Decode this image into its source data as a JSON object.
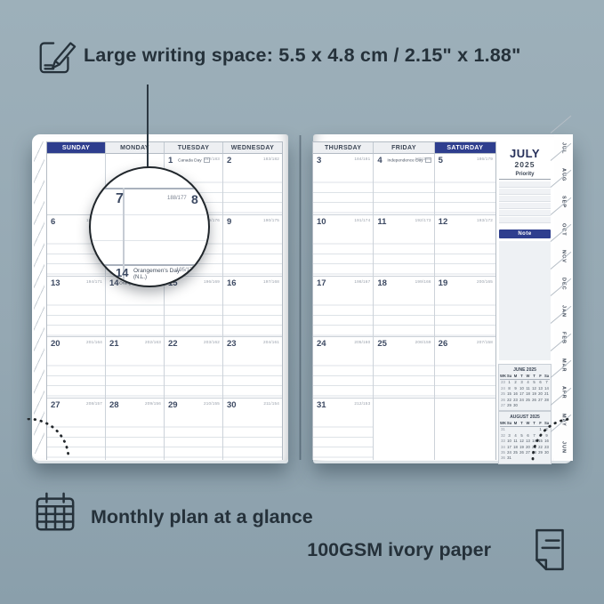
{
  "callout": {
    "text": "Large writing space: 5.5 x 4.8 cm / 2.15\" x 1.88\""
  },
  "footer": {
    "monthly_text": "Monthly plan at a glance",
    "paper_text": "100GSM ivory paper"
  },
  "colors": {
    "navy": "#2e3e8e",
    "background": "#95a8b3",
    "ink": "#25313a"
  },
  "planner": {
    "month": "JULY",
    "year": "2025",
    "priority_label": "Priority",
    "note_label": "Note",
    "left_headers": [
      "SUNDAY",
      "MONDAY",
      "TUESDAY",
      "WEDNESDAY"
    ],
    "right_headers": [
      "THURSDAY",
      "FRIDAY",
      "SATURDAY"
    ],
    "left_weeks": [
      [
        {},
        {},
        {
          "day": "1",
          "meta": "182/183",
          "holiday": "Canada Day"
        },
        {
          "day": "2",
          "meta": "183/182"
        }
      ],
      [
        {
          "day": "6",
          "meta": "187/178"
        },
        {
          "day": "7",
          "meta": "188/177"
        },
        {
          "day": "8",
          "meta": "189/176"
        },
        {
          "day": "9",
          "meta": "190/175"
        }
      ],
      [
        {
          "day": "13",
          "meta": "194/171"
        },
        {
          "day": "14",
          "meta": "195/170",
          "holiday": "Orangemen's Day (N.L.)"
        },
        {
          "day": "15",
          "meta": "196/169"
        },
        {
          "day": "16",
          "meta": "197/168"
        }
      ],
      [
        {
          "day": "20",
          "meta": "201/164"
        },
        {
          "day": "21",
          "meta": "202/163"
        },
        {
          "day": "22",
          "meta": "203/162"
        },
        {
          "day": "23",
          "meta": "204/161"
        }
      ],
      [
        {
          "day": "27",
          "meta": "208/157"
        },
        {
          "day": "28",
          "meta": "209/156"
        },
        {
          "day": "29",
          "meta": "210/155"
        },
        {
          "day": "30",
          "meta": "211/154"
        }
      ]
    ],
    "right_weeks": [
      [
        {
          "day": "3",
          "meta": "184/181"
        },
        {
          "day": "4",
          "meta": "185/180",
          "holiday": "Independence Day"
        },
        {
          "day": "5",
          "meta": "186/179"
        }
      ],
      [
        {
          "day": "10",
          "meta": "191/174"
        },
        {
          "day": "11",
          "meta": "192/173"
        },
        {
          "day": "12",
          "meta": "193/172"
        }
      ],
      [
        {
          "day": "17",
          "meta": "198/167"
        },
        {
          "day": "18",
          "meta": "199/166"
        },
        {
          "day": "19",
          "meta": "200/165"
        }
      ],
      [
        {
          "day": "24",
          "meta": "205/160"
        },
        {
          "day": "25",
          "meta": "206/159"
        },
        {
          "day": "26",
          "meta": "207/158"
        }
      ],
      [
        {
          "day": "31",
          "meta": "212/153"
        },
        {},
        {}
      ]
    ],
    "month_tabs": [
      "JUL",
      "AUG",
      "SEP",
      "OCT",
      "NOV",
      "DEC",
      "JAN",
      "FEB",
      "MAR",
      "APR",
      "MAY",
      "JUN"
    ],
    "mini_calendars": [
      {
        "title": "JUNE 2025",
        "header": [
          "WK",
          "Su",
          "M",
          "T",
          "W",
          "T",
          "F",
          "Sa"
        ],
        "rows": [
          [
            "23",
            "1",
            "2",
            "3",
            "4",
            "5",
            "6",
            "7"
          ],
          [
            "24",
            "8",
            "9",
            "10",
            "11",
            "12",
            "13",
            "14"
          ],
          [
            "25",
            "15",
            "16",
            "17",
            "18",
            "19",
            "20",
            "21"
          ],
          [
            "26",
            "22",
            "23",
            "24",
            "25",
            "26",
            "27",
            "28"
          ],
          [
            "27",
            "29",
            "30",
            "",
            "",
            "",
            "",
            ""
          ]
        ]
      },
      {
        "title": "AUGUST 2025",
        "header": [
          "WK",
          "Su",
          "M",
          "T",
          "W",
          "T",
          "F",
          "Sa"
        ],
        "rows": [
          [
            "31",
            "",
            "",
            "",
            "",
            "",
            "1",
            "2"
          ],
          [
            "32",
            "3",
            "4",
            "5",
            "6",
            "7",
            "8",
            "9"
          ],
          [
            "33",
            "10",
            "11",
            "12",
            "13",
            "14",
            "15",
            "16"
          ],
          [
            "34",
            "17",
            "18",
            "19",
            "20",
            "21",
            "22",
            "23"
          ],
          [
            "35",
            "24",
            "25",
            "26",
            "27",
            "28",
            "29",
            "30"
          ],
          [
            "36",
            "31",
            "",
            "",
            "",
            "",
            "",
            ""
          ]
        ]
      }
    ],
    "magnifier": {
      "day": "7",
      "meta": "188/177",
      "next_day": "8",
      "row2_day": "14",
      "row2_holiday": "Orangemen's Day",
      "row2_region": "(N.L.)",
      "row2_meta": "195/170"
    }
  }
}
